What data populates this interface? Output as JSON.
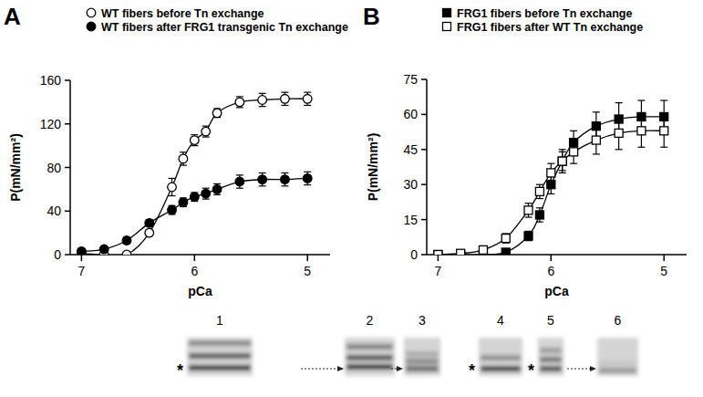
{
  "chart_data": [
    {
      "type": "line",
      "title": "A",
      "x_label": "pCa",
      "y_label": "P(mN/mm²)",
      "x": [
        7.0,
        6.8,
        6.6,
        6.4,
        6.2,
        6.1,
        6.0,
        5.9,
        5.8,
        5.6,
        5.4,
        5.2,
        5.0
      ],
      "xlim": [
        7.1,
        4.8
      ],
      "xticks": [
        7,
        6,
        5
      ],
      "ylim": [
        0,
        160
      ],
      "yticks": [
        0,
        40,
        80,
        120,
        160
      ],
      "legend": "top-left",
      "series": [
        {
          "name": "WT fibers before Tn exchange",
          "color": "#000000",
          "marker": "circle-open",
          "line_style": "smooth",
          "values": [
            1,
            0,
            0,
            20,
            62,
            88,
            105,
            113,
            130,
            140,
            142,
            143,
            143
          ],
          "errors": [
            1,
            0,
            0,
            2,
            8,
            6,
            5,
            5,
            4,
            5,
            6,
            6,
            6
          ]
        },
        {
          "name": "WT fibers after FRG1 transgenic Tn exchange",
          "color": "#000000",
          "marker": "circle-filled",
          "line_style": "smooth",
          "values": [
            3,
            5,
            13,
            29,
            41,
            48,
            53,
            56,
            60,
            67,
            69,
            69,
            70
          ],
          "errors": [
            2,
            2,
            3,
            3,
            4,
            4,
            4,
            5,
            5,
            6,
            6,
            6,
            6
          ]
        }
      ]
    },
    {
      "type": "line",
      "title": "B",
      "x_label": "pCa",
      "y_label": "P(mN/mm²)",
      "x": [
        7.0,
        6.8,
        6.6,
        6.4,
        6.2,
        6.1,
        6.0,
        5.9,
        5.8,
        5.6,
        5.4,
        5.2,
        5.0
      ],
      "xlim": [
        7.1,
        4.8
      ],
      "xticks": [
        7,
        6,
        5
      ],
      "ylim": [
        0,
        75
      ],
      "yticks": [
        0,
        15,
        30,
        45,
        60,
        75
      ],
      "legend": "top-left",
      "series": [
        {
          "name": "FRG1 fibers before Tn exchange",
          "color": "#000000",
          "marker": "square-filled",
          "line_style": "smooth",
          "values": [
            0,
            0,
            0,
            1,
            8,
            17,
            30,
            40,
            48,
            55,
            58,
            59,
            59
          ],
          "errors": [
            0,
            0,
            0,
            1,
            2,
            3,
            4,
            5,
            5,
            6,
            7,
            7,
            7
          ]
        },
        {
          "name": "FRG1 fibers after WT Tn exchange",
          "color": "#000000",
          "marker": "square-open",
          "line_style": "smooth",
          "values": [
            0,
            0.5,
            2,
            7,
            19,
            27,
            35,
            40,
            44,
            49,
            52,
            53,
            53
          ],
          "errors": [
            0,
            0,
            1,
            2,
            3,
            3,
            4,
            4,
            5,
            6,
            7,
            7,
            7
          ]
        }
      ]
    }
  ],
  "blot": {
    "lanes": [
      {
        "label": "1",
        "asterisk": "*"
      },
      {
        "label": "2",
        "arrow": true
      },
      {
        "label": "3",
        "arrow": true
      },
      {
        "label": "4",
        "asterisk": "*"
      },
      {
        "label": "5",
        "asterisk": "*"
      },
      {
        "label": "6",
        "arrow": true
      }
    ]
  }
}
